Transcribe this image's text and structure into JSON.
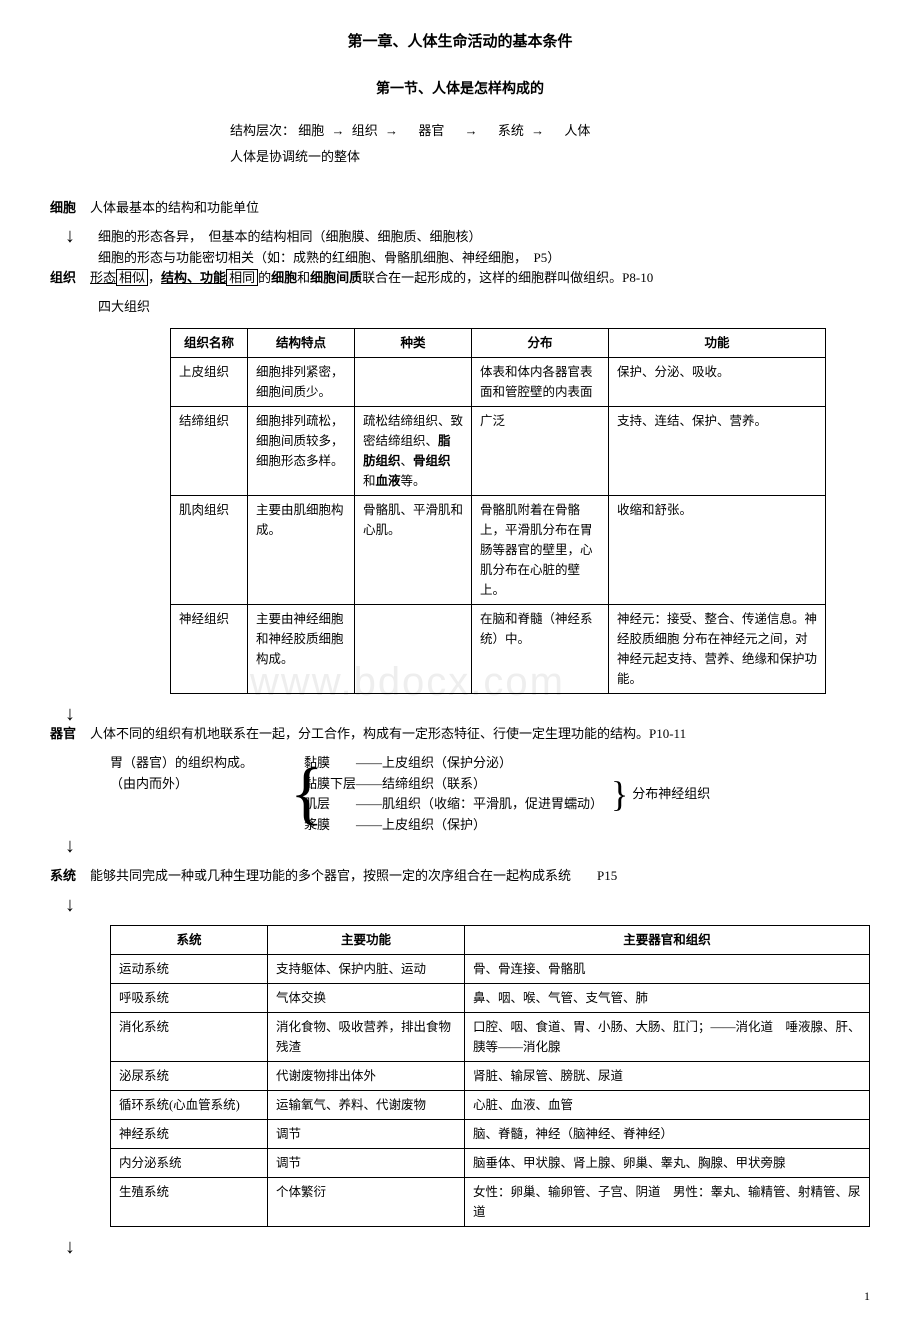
{
  "title_main": "第一章、人体生命活动的基本条件",
  "title_sub": "第一节、人体是怎样构成的",
  "hierarchy_label": "结构层次：",
  "hierarchy_items": [
    "细胞",
    "组织",
    "器官",
    "系统",
    "人体"
  ],
  "hierarchy_sub": "人体是协调统一的整体",
  "cell": {
    "label": "细胞",
    "line1": "人体最基本的结构和功能单位",
    "line2": "细胞的形态各异，　但基本的结构相同（细胞膜、细胞质、细胞核）",
    "line3": "细胞的形态与功能密切相关（如：成熟的红细胞、骨骼肌细胞、神经细胞，　P5）"
  },
  "tissue": {
    "label": "组织",
    "line1_a": "形态",
    "line1_b": "相似",
    "line1_c": "，",
    "line1_d": "结构、功能",
    "line1_e": "相同",
    "line1_f": "的",
    "line1_g": "细胞",
    "line1_h": "和",
    "line1_i": "细胞间质",
    "line1_j": "联合在一起形成的，这样的细胞群叫做组织。P8-10",
    "line2": "四大组织"
  },
  "t1": {
    "headers": [
      "组织名称",
      "结构特点",
      "种类",
      "分布",
      "功能"
    ],
    "rows": [
      [
        "上皮组织",
        "细胞排列紧密，细胞间质少。",
        "",
        "体表和体内各器官表面和管腔壁的内表面",
        "保护、分泌、吸收。"
      ],
      [
        "结缔组织",
        "细胞排列疏松，细胞间质较多，细胞形态多样。",
        "疏松结缔组织、致密结缔组织、<b>脂肪组织</b>、<b>骨组织</b>和<b>血液</b>等。",
        "广泛",
        "支持、连结、保护、营养。"
      ],
      [
        "肌肉组织",
        "主要由肌细胞构成。",
        "骨骼肌、平滑肌和心肌。",
        "骨骼肌附着在骨骼上，平滑肌分布在胃肠等器官的壁里，心肌分布在心脏的壁上。",
        "收缩和舒张。"
      ],
      [
        "神经组织",
        "主要由神经细胞和神经胶质细胞构成。",
        "",
        "在脑和脊髓（神经系统）中。",
        "神经元：接受、整合、传递信息。神经胶质细胞 分布在神经元之间，对神经元起支持、营养、绝缘和保护功能。"
      ]
    ]
  },
  "organ": {
    "label": "器官",
    "line1": "人体不同的组织有机地联系在一起，分工合作，构成有一定形态特征、行使一定生理功能的结构。P10-11",
    "left1": "胃（器官）的组织构成。",
    "left2": "（由内而外）",
    "mid": [
      "黏膜　　——上皮组织（保护分泌）",
      "黏膜下层——结缔组织（联系）",
      "肌层　　——肌组织（收缩：平滑肌，促进胃蠕动）",
      "浆膜　　——上皮组织（保护）"
    ],
    "right": "分布神经组织"
  },
  "system": {
    "label": "系统",
    "line1": "能够共同完成一种或几种生理功能的多个器官，按照一定的次序组合在一起构成系统　　P15"
  },
  "t2": {
    "headers": [
      "系统",
      "主要功能",
      "主要器官和组织"
    ],
    "rows": [
      [
        "运动系统",
        "支持躯体、保护内脏、运动",
        "骨、骨连接、骨骼肌"
      ],
      [
        "呼吸系统",
        "气体交换",
        "鼻、咽、喉、气管、支气管、肺"
      ],
      [
        "消化系统",
        "消化食物、吸收营养，排出食物残渣",
        "口腔、咽、食道、胃、小肠、大肠、肛门；——消化道　唾液腺、肝、胰等——消化腺"
      ],
      [
        "泌尿系统",
        "代谢废物排出体外",
        "肾脏、输尿管、膀胱、尿道"
      ],
      [
        "循环系统(心血管系统)",
        "运输氧气、养料、代谢废物",
        "心脏、血液、血管"
      ],
      [
        "神经系统",
        "调节",
        "脑、脊髓，神经（脑神经、脊神经）"
      ],
      [
        "内分泌系统",
        "调节",
        "脑垂体、甲状腺、肾上腺、卵巢、睾丸、胸腺、甲状旁腺"
      ],
      [
        "生殖系统",
        "个体繁衍",
        "女性：卵巢、输卵管、子宫、阴道　男性：睾丸、输精管、射精管、尿道"
      ]
    ]
  },
  "page_num": "1"
}
